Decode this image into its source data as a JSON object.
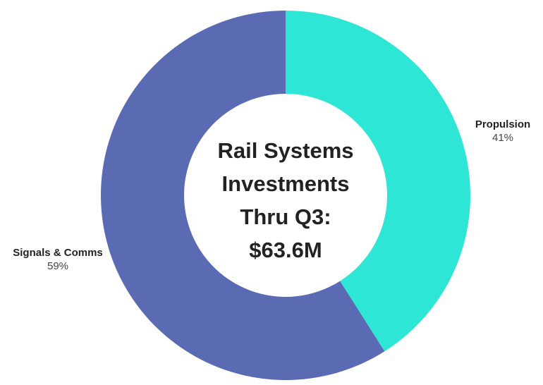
{
  "chart_data": {
    "type": "pie",
    "donut": true,
    "title_lines": [
      "Rail Systems",
      "Investments",
      "Thru Q3:",
      "$63.6M"
    ],
    "slices": [
      {
        "name": "Propulsion",
        "value": 41,
        "label": "41%",
        "color": "#2ee6d6"
      },
      {
        "name": "Signals & Comms",
        "value": 59,
        "label": "59%",
        "color": "#5a6bb3"
      }
    ],
    "start_angle": "top",
    "direction": "clockwise",
    "legend": "none"
  }
}
